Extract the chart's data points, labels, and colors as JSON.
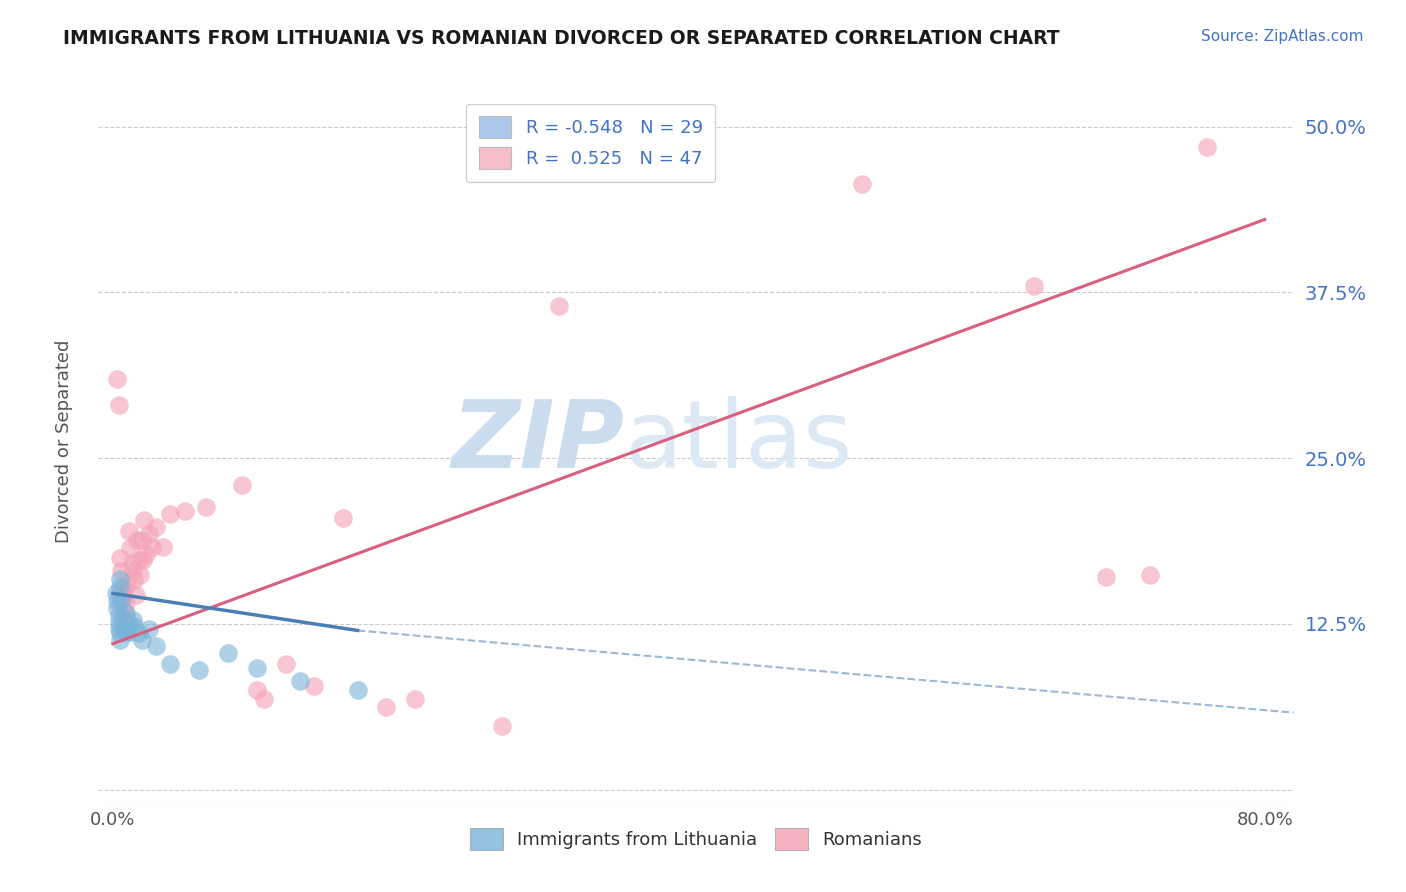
{
  "title": "IMMIGRANTS FROM LITHUANIA VS ROMANIAN DIVORCED OR SEPARATED CORRELATION CHART",
  "source_text": "Source: ZipAtlas.com",
  "ylabel": "Divorced or Separated",
  "x_label_blue": "Immigrants from Lithuania",
  "x_label_pink": "Romanians",
  "xlim": [
    -0.01,
    0.82
  ],
  "ylim": [
    -0.01,
    0.535
  ],
  "xticks": [
    0.0,
    0.1,
    0.2,
    0.3,
    0.4,
    0.5,
    0.6,
    0.7,
    0.8
  ],
  "xticklabels": [
    "0.0%",
    "",
    "",
    "",
    "",
    "",
    "",
    "",
    "80.0%"
  ],
  "yticks": [
    0.0,
    0.125,
    0.25,
    0.375,
    0.5
  ],
  "yticklabels": [
    "",
    "12.5%",
    "25.0%",
    "37.5%",
    "50.0%"
  ],
  "legend_entries": [
    {
      "label": "R = -0.548   N = 29",
      "color": "#adc8eb"
    },
    {
      "label": "R =  0.525   N = 47",
      "color": "#f5bfca"
    }
  ],
  "blue_color": "#7ab3d9",
  "pink_color": "#f4a0b5",
  "blue_line_color": "#4a7fb5",
  "pink_line_color": "#d95f7f",
  "watermark_zip": "ZIP",
  "watermark_atlas": "atlas",
  "watermark_color": "#ccdcef",
  "background_color": "#ffffff",
  "grid_color": "#cccccc",
  "blue_scatter": [
    [
      0.002,
      0.148
    ],
    [
      0.003,
      0.142
    ],
    [
      0.003,
      0.137
    ],
    [
      0.004,
      0.131
    ],
    [
      0.004,
      0.126
    ],
    [
      0.004,
      0.121
    ],
    [
      0.005,
      0.118
    ],
    [
      0.005,
      0.113
    ],
    [
      0.005,
      0.153
    ],
    [
      0.005,
      0.159
    ],
    [
      0.006,
      0.143
    ],
    [
      0.007,
      0.129
    ],
    [
      0.008,
      0.122
    ],
    [
      0.009,
      0.119
    ],
    [
      0.009,
      0.133
    ],
    [
      0.011,
      0.124
    ],
    [
      0.012,
      0.119
    ],
    [
      0.014,
      0.128
    ],
    [
      0.015,
      0.123
    ],
    [
      0.018,
      0.118
    ],
    [
      0.02,
      0.113
    ],
    [
      0.025,
      0.121
    ],
    [
      0.03,
      0.108
    ],
    [
      0.04,
      0.095
    ],
    [
      0.06,
      0.09
    ],
    [
      0.08,
      0.103
    ],
    [
      0.1,
      0.092
    ],
    [
      0.13,
      0.082
    ],
    [
      0.17,
      0.075
    ]
  ],
  "pink_scatter": [
    [
      0.003,
      0.31
    ],
    [
      0.004,
      0.29
    ],
    [
      0.005,
      0.175
    ],
    [
      0.006,
      0.165
    ],
    [
      0.007,
      0.152
    ],
    [
      0.007,
      0.143
    ],
    [
      0.008,
      0.148
    ],
    [
      0.008,
      0.135
    ],
    [
      0.009,
      0.13
    ],
    [
      0.009,
      0.141
    ],
    [
      0.01,
      0.125
    ],
    [
      0.01,
      0.155
    ],
    [
      0.011,
      0.195
    ],
    [
      0.012,
      0.182
    ],
    [
      0.013,
      0.17
    ],
    [
      0.014,
      0.165
    ],
    [
      0.015,
      0.158
    ],
    [
      0.016,
      0.147
    ],
    [
      0.017,
      0.188
    ],
    [
      0.018,
      0.173
    ],
    [
      0.019,
      0.162
    ],
    [
      0.02,
      0.188
    ],
    [
      0.021,
      0.173
    ],
    [
      0.022,
      0.203
    ],
    [
      0.023,
      0.178
    ],
    [
      0.025,
      0.193
    ],
    [
      0.027,
      0.183
    ],
    [
      0.03,
      0.198
    ],
    [
      0.035,
      0.183
    ],
    [
      0.04,
      0.208
    ],
    [
      0.05,
      0.21
    ],
    [
      0.065,
      0.213
    ],
    [
      0.09,
      0.23
    ],
    [
      0.1,
      0.075
    ],
    [
      0.105,
      0.068
    ],
    [
      0.12,
      0.095
    ],
    [
      0.14,
      0.078
    ],
    [
      0.16,
      0.205
    ],
    [
      0.19,
      0.062
    ],
    [
      0.21,
      0.068
    ],
    [
      0.27,
      0.048
    ],
    [
      0.31,
      0.365
    ],
    [
      0.52,
      0.457
    ],
    [
      0.64,
      0.38
    ],
    [
      0.69,
      0.16
    ],
    [
      0.72,
      0.162
    ],
    [
      0.76,
      0.485
    ]
  ],
  "blue_trend_solid": {
    "x_start": 0.0,
    "y_start": 0.148,
    "x_end": 0.17,
    "y_end": 0.12
  },
  "blue_trend_dashed": {
    "x_start": 0.17,
    "y_start": 0.12,
    "x_end": 0.82,
    "y_end": 0.058
  },
  "pink_trend": {
    "x_start": 0.0,
    "y_start": 0.11,
    "x_end": 0.8,
    "y_end": 0.43
  }
}
